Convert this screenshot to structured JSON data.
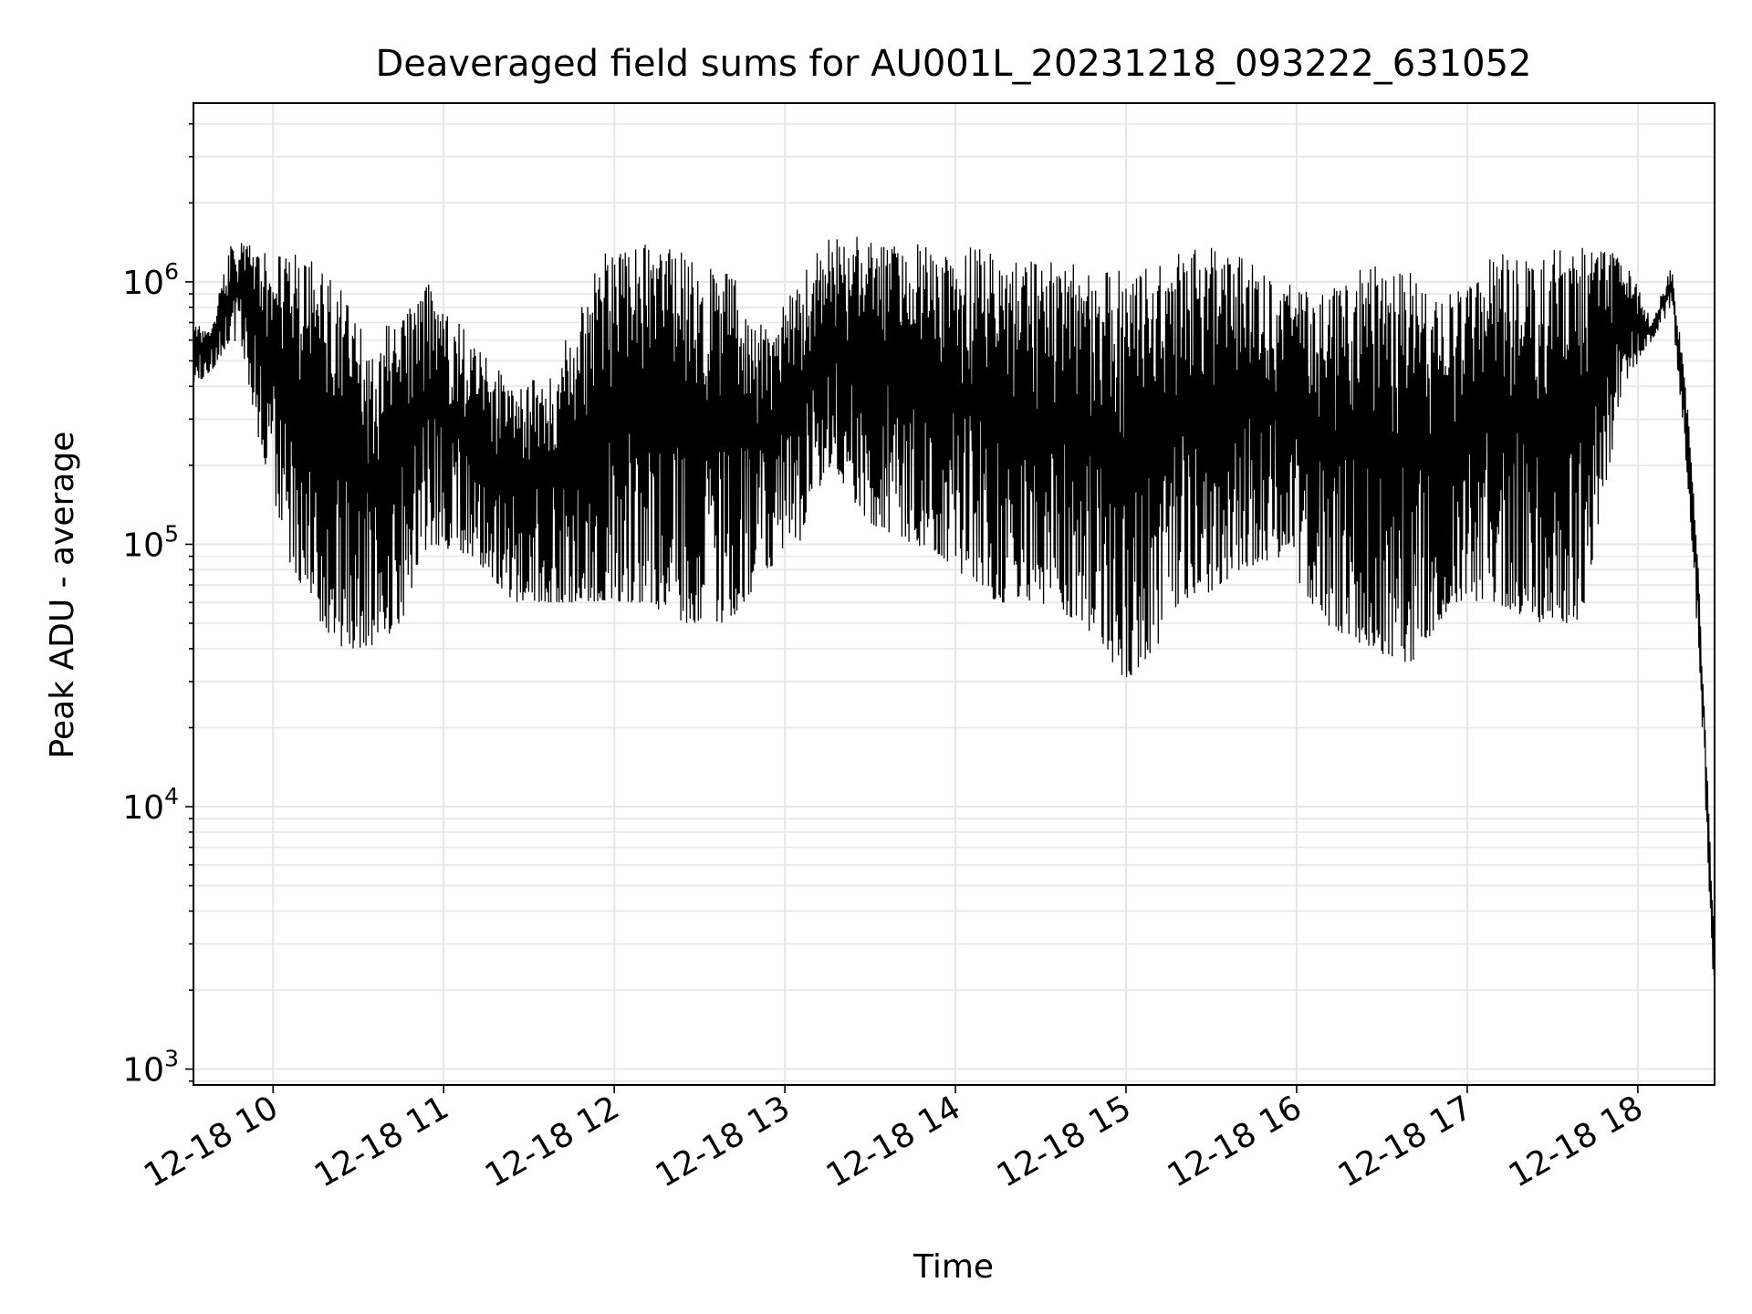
{
  "chart_data": {
    "type": "line",
    "title": "Deaveraged field sums for AU001L_20231218_093222_631052",
    "xlabel": "Time",
    "ylabel": "Peak ADU - average",
    "yscale": "log",
    "ylim": [
      870,
      4800000
    ],
    "xlim": [
      "2023-12-18 09:32",
      "2023-12-18 18:27"
    ],
    "grid": true,
    "line_color": "#000000",
    "grid_color": "#e6e6e6",
    "x_ticks": [
      {
        "t": "2023-12-18 10:00",
        "label": "12-18 10"
      },
      {
        "t": "2023-12-18 11:00",
        "label": "12-18 11"
      },
      {
        "t": "2023-12-18 12:00",
        "label": "12-18 12"
      },
      {
        "t": "2023-12-18 13:00",
        "label": "12-18 13"
      },
      {
        "t": "2023-12-18 14:00",
        "label": "12-18 14"
      },
      {
        "t": "2023-12-18 15:00",
        "label": "12-18 15"
      },
      {
        "t": "2023-12-18 16:00",
        "label": "12-18 16"
      },
      {
        "t": "2023-12-18 17:00",
        "label": "12-18 17"
      },
      {
        "t": "2023-12-18 18:00",
        "label": "12-18 18"
      }
    ],
    "y_ticks": [
      {
        "value": 1000,
        "base": "10",
        "exp": "3"
      },
      {
        "value": 10000,
        "base": "10",
        "exp": "4"
      },
      {
        "value": 100000,
        "base": "10",
        "exp": "5"
      },
      {
        "value": 1000000,
        "base": "10",
        "exp": "6"
      }
    ],
    "series": [
      {
        "x": [
          "2023-12-18 09:32",
          "2023-12-18 09:38",
          "2023-12-18 09:45",
          "2023-12-18 09:50",
          "2023-12-18 09:55",
          "2023-12-18 10:05",
          "2023-12-18 10:15",
          "2023-12-18 10:25",
          "2023-12-18 10:35",
          "2023-12-18 10:45",
          "2023-12-18 10:55",
          "2023-12-18 11:10",
          "2023-12-18 11:25",
          "2023-12-18 11:40",
          "2023-12-18 11:55",
          "2023-12-18 12:10",
          "2023-12-18 12:25",
          "2023-12-18 12:40",
          "2023-12-18 12:55",
          "2023-12-18 13:05",
          "2023-12-18 13:15",
          "2023-12-18 13:30",
          "2023-12-18 13:45",
          "2023-12-18 14:00",
          "2023-12-18 14:15",
          "2023-12-18 14:30",
          "2023-12-18 14:45",
          "2023-12-18 15:00",
          "2023-12-18 15:10",
          "2023-12-18 15:25",
          "2023-12-18 15:40",
          "2023-12-18 15:55",
          "2023-12-18 16:10",
          "2023-12-18 16:25",
          "2023-12-18 16:40",
          "2023-12-18 16:55",
          "2023-12-18 17:10",
          "2023-12-18 17:25",
          "2023-12-18 17:40",
          "2023-12-18 17:55",
          "2023-12-18 18:05",
          "2023-12-18 18:12",
          "2023-12-18 18:18",
          "2023-12-18 18:22",
          "2023-12-18 18:25",
          "2023-12-18 18:27"
        ],
        "y_high": [
          700000,
          650000,
          1400000,
          1500000,
          1300000,
          1300000,
          1200000,
          900000,
          600000,
          800000,
          1000000,
          600000,
          400000,
          500000,
          1300000,
          1400000,
          1300000,
          1100000,
          700000,
          1000000,
          1500000,
          1500000,
          1400000,
          1400000,
          1300000,
          1200000,
          1200000,
          1100000,
          1200000,
          1400000,
          1300000,
          1000000,
          900000,
          1200000,
          1100000,
          900000,
          1300000,
          1300000,
          1400000,
          1300000,
          700000,
          1200000,
          300000,
          60000,
          10000,
          3000
        ],
        "y_low": [
          400000,
          450000,
          600000,
          500000,
          250000,
          90000,
          50000,
          40000,
          40000,
          50000,
          100000,
          90000,
          60000,
          60000,
          60000,
          60000,
          50000,
          50000,
          80000,
          100000,
          200000,
          120000,
          100000,
          80000,
          60000,
          60000,
          50000,
          30000,
          40000,
          60000,
          80000,
          90000,
          50000,
          40000,
          35000,
          60000,
          60000,
          50000,
          50000,
          400000,
          600000,
          800000,
          150000,
          30000,
          5000,
          1500
        ]
      }
    ]
  }
}
